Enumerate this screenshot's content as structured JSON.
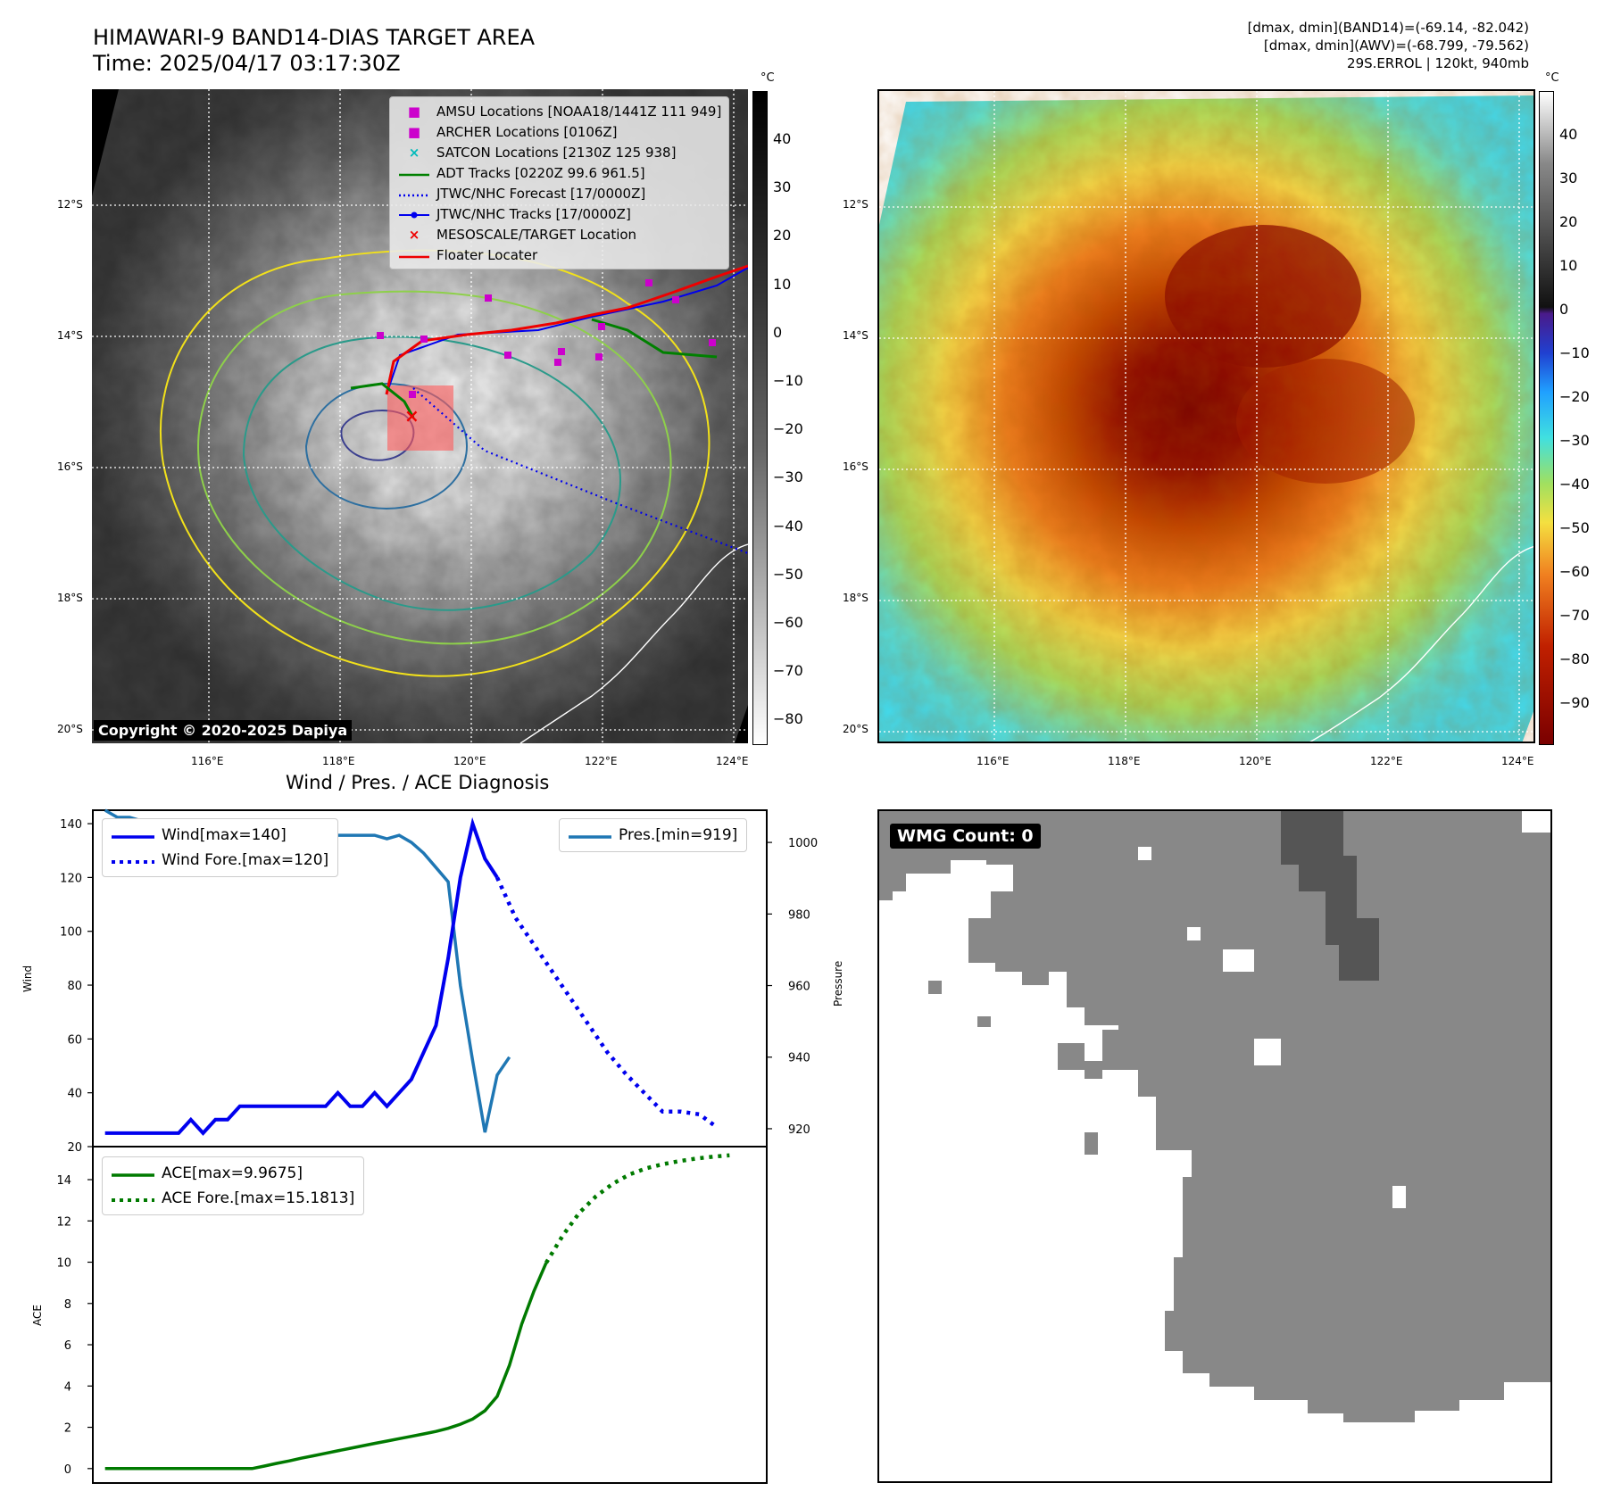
{
  "header": {
    "title_line1": "HIMAWARI-9 BAND14-DIAS TARGET AREA",
    "title_line2": "Time: 2025/04/17 03:17:30Z",
    "info_line1": "[dmax, dmin](BAND14)=(-69.14, -82.042)",
    "info_line2": "[dmax, dmin](AWV)=(-68.799, -79.562)",
    "info_line3": "29S.ERROL | 120kt, 940mb"
  },
  "map": {
    "lat_labels": [
      "12°S",
      "14°S",
      "16°S",
      "18°S",
      "20°S"
    ],
    "lon_labels": [
      "116°E",
      "118°E",
      "120°E",
      "122°E",
      "124°E"
    ],
    "copyright": "Copyright © 2020-2025 Dapiya",
    "unit": "°C",
    "gray_colorbar_ticks": [
      "40",
      "30",
      "20",
      "10",
      "0",
      "−10",
      "−20",
      "−30",
      "−40",
      "−50",
      "−60",
      "−70",
      "−80"
    ],
    "color_colorbar_ticks": [
      "40",
      "30",
      "20",
      "10",
      "0",
      "−10",
      "−20",
      "−30",
      "−40",
      "−50",
      "−60",
      "−70",
      "−80",
      "−90"
    ],
    "legend": [
      {
        "label": "AMSU Locations [NOAA18/1441Z 111 949]",
        "symbol": "square",
        "color": "#cc00cc"
      },
      {
        "label": "ARCHER Locations [0106Z]",
        "symbol": "square",
        "color": "#cc00cc"
      },
      {
        "label": "SATCON Locations [2130Z 125 938]",
        "symbol": "x",
        "color": "#00bbbb"
      },
      {
        "label": "ADT Tracks [0220Z 99.6 961.5]",
        "symbol": "line",
        "color": "#008000"
      },
      {
        "label": "JTWC/NHC Forecast [17/0000Z]",
        "symbol": "dotted",
        "color": "#0000ee"
      },
      {
        "label": "JTWC/NHC Tracks [17/0000Z]",
        "symbol": "line-dot",
        "color": "#0000ee"
      },
      {
        "label": "MESOSCALE/TARGET Location",
        "symbol": "x",
        "color": "#ee0000"
      },
      {
        "label": "Floater Locater",
        "symbol": "line",
        "color": "#ee0000"
      }
    ]
  },
  "diagnosis_title": "Wind / Pres. / ACE Diagnosis",
  "wmg_label": "WMG Count: 0",
  "chart_data": [
    {
      "type": "line",
      "title": "Wind / Pres. / ACE Diagnosis",
      "ylabel": "Wind",
      "ylabel_right": "Pressure",
      "ylim": [
        20,
        145
      ],
      "ylim_right": [
        915,
        1009
      ],
      "yticks": [
        20,
        40,
        60,
        80,
        100,
        120,
        140
      ],
      "yticks_right": [
        920,
        940,
        960,
        980,
        1000
      ],
      "legend_left": [
        "Wind[max=140]",
        "Wind Fore.[max=120]"
      ],
      "legend_right": [
        "Pres.[min=919]"
      ],
      "series": [
        {
          "name": "Wind[max=140]",
          "color": "#0000ee",
          "style": "solid",
          "values": [
            25,
            25,
            25,
            25,
            25,
            25,
            25,
            30,
            25,
            30,
            30,
            35,
            35,
            35,
            35,
            35,
            35,
            35,
            35,
            40,
            35,
            35,
            40,
            35,
            40,
            45,
            55,
            65,
            90,
            120,
            140,
            127,
            120
          ]
        },
        {
          "name": "Wind Fore.[max=120]",
          "color": "#0000ee",
          "style": "dotted",
          "values": [
            120,
            105,
            95,
            85,
            75,
            65,
            55,
            47,
            40,
            33,
            33,
            32,
            27
          ],
          "start_index": 32,
          "step": 1.5
        },
        {
          "name": "Pres.[min=919]",
          "color": "#1f77b4",
          "style": "solid",
          "values": [
            1009,
            1007,
            1007,
            1006,
            1004,
            1003,
            1002,
            1003,
            1002,
            1002,
            1002,
            1002,
            1002,
            1002,
            1002,
            1002,
            1002,
            1002,
            1002,
            1002,
            1002,
            1002,
            1002,
            1001,
            1002,
            1000,
            997,
            993,
            989,
            960,
            939,
            919,
            935,
            940
          ]
        }
      ]
    },
    {
      "type": "line",
      "ylabel": "ACE",
      "ylim": [
        -0.7,
        15.6
      ],
      "yticks": [
        0,
        2,
        4,
        6,
        8,
        10,
        12,
        14
      ],
      "series": [
        {
          "name": "ACE[max=9.9675]",
          "color": "#007a00",
          "style": "solid",
          "values": [
            0,
            0,
            0,
            0,
            0,
            0,
            0,
            0,
            0,
            0,
            0,
            0,
            0,
            0.12,
            0.25,
            0.37,
            0.5,
            0.62,
            0.74,
            0.86,
            0.98,
            1.1,
            1.22,
            1.33,
            1.45,
            1.56,
            1.68,
            1.8,
            1.95,
            2.15,
            2.4,
            2.8,
            3.5,
            5.0,
            7.0,
            8.6,
            9.97
          ]
        },
        {
          "name": "ACE Fore.[max=15.1813]",
          "color": "#007a00",
          "style": "dotted",
          "values": [
            9.97,
            11.3,
            12.4,
            13.2,
            13.8,
            14.25,
            14.55,
            14.75,
            14.9,
            15.02,
            15.11,
            15.18
          ],
          "start_index": 36,
          "step": 1.36
        }
      ],
      "legend": [
        "ACE[max=9.9675]",
        "ACE Fore.[max=15.1813]"
      ]
    }
  ]
}
